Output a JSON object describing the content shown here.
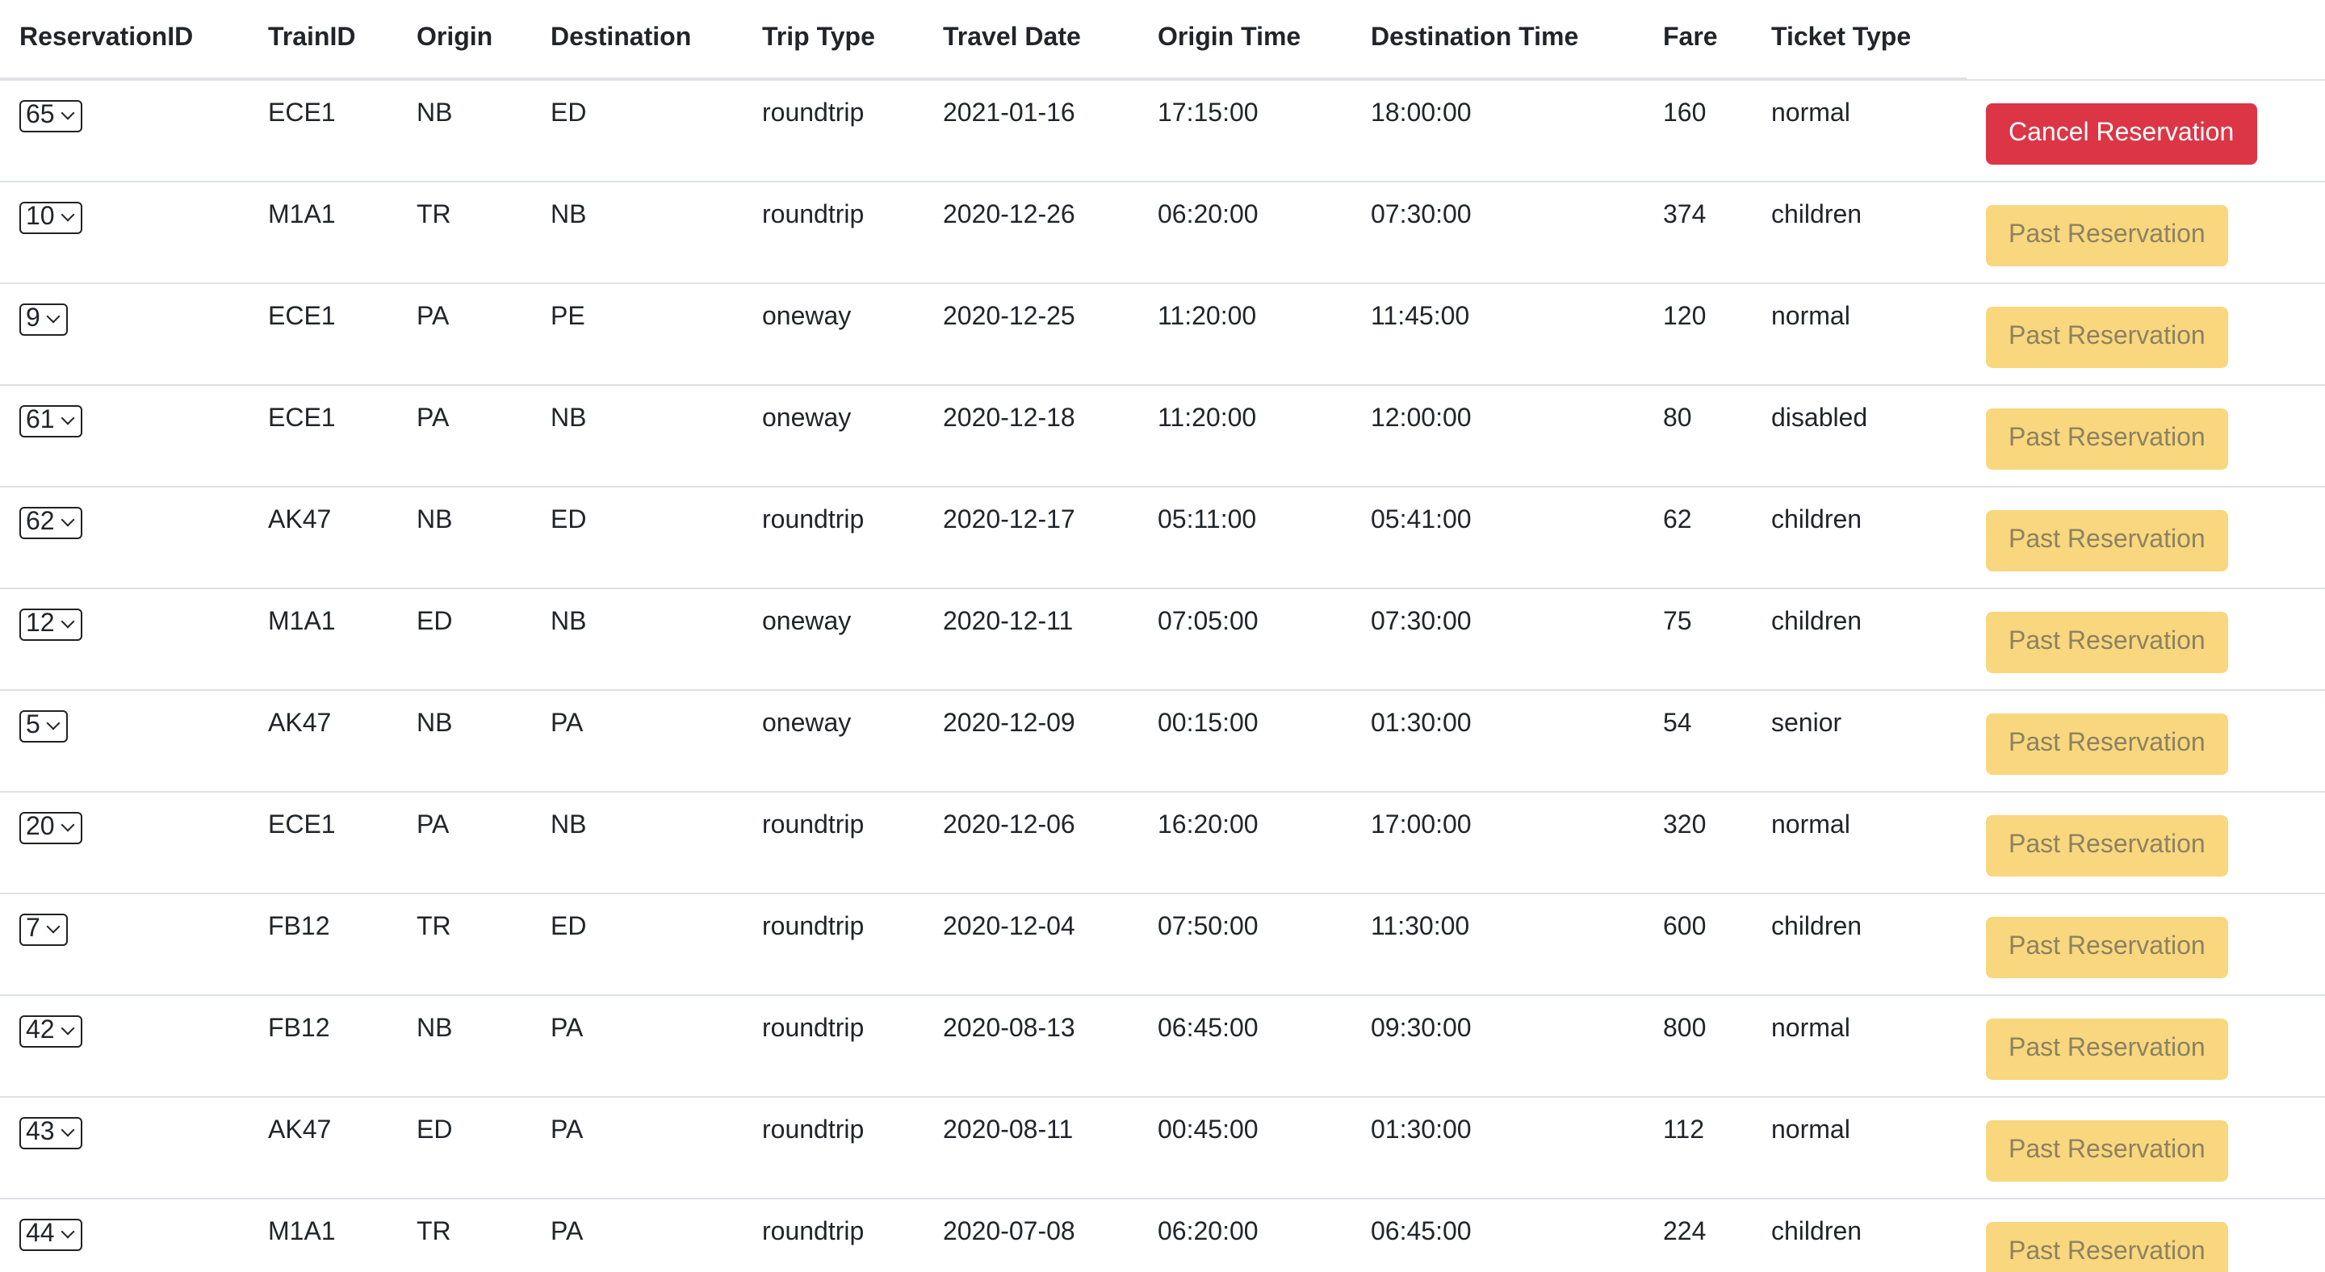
{
  "table": {
    "headers": [
      "ReservationID",
      "TrainID",
      "Origin",
      "Destination",
      "Trip Type",
      "Travel Date",
      "Origin Time",
      "Destination Time",
      "Fare",
      "Ticket Type"
    ],
    "rows": [
      {
        "id": "65",
        "train": "ECE1",
        "origin": "NB",
        "destination": "ED",
        "trip": "roundtrip",
        "date": "2021-01-16",
        "origin_time": "17:15:00",
        "dest_time": "18:00:00",
        "fare": "160",
        "ticket": "normal",
        "action": "Cancel Reservation",
        "action_type": "cancel"
      },
      {
        "id": "10",
        "train": "M1A1",
        "origin": "TR",
        "destination": "NB",
        "trip": "roundtrip",
        "date": "2020-12-26",
        "origin_time": "06:20:00",
        "dest_time": "07:30:00",
        "fare": "374",
        "ticket": "children",
        "action": "Past Reservation",
        "action_type": "past"
      },
      {
        "id": "9",
        "train": "ECE1",
        "origin": "PA",
        "destination": "PE",
        "trip": "oneway",
        "date": "2020-12-25",
        "origin_time": "11:20:00",
        "dest_time": "11:45:00",
        "fare": "120",
        "ticket": "normal",
        "action": "Past Reservation",
        "action_type": "past"
      },
      {
        "id": "61",
        "train": "ECE1",
        "origin": "PA",
        "destination": "NB",
        "trip": "oneway",
        "date": "2020-12-18",
        "origin_time": "11:20:00",
        "dest_time": "12:00:00",
        "fare": "80",
        "ticket": "disabled",
        "action": "Past Reservation",
        "action_type": "past"
      },
      {
        "id": "62",
        "train": "AK47",
        "origin": "NB",
        "destination": "ED",
        "trip": "roundtrip",
        "date": "2020-12-17",
        "origin_time": "05:11:00",
        "dest_time": "05:41:00",
        "fare": "62",
        "ticket": "children",
        "action": "Past Reservation",
        "action_type": "past"
      },
      {
        "id": "12",
        "train": "M1A1",
        "origin": "ED",
        "destination": "NB",
        "trip": "oneway",
        "date": "2020-12-11",
        "origin_time": "07:05:00",
        "dest_time": "07:30:00",
        "fare": "75",
        "ticket": "children",
        "action": "Past Reservation",
        "action_type": "past"
      },
      {
        "id": "5",
        "train": "AK47",
        "origin": "NB",
        "destination": "PA",
        "trip": "oneway",
        "date": "2020-12-09",
        "origin_time": "00:15:00",
        "dest_time": "01:30:00",
        "fare": "54",
        "ticket": "senior",
        "action": "Past Reservation",
        "action_type": "past"
      },
      {
        "id": "20",
        "train": "ECE1",
        "origin": "PA",
        "destination": "NB",
        "trip": "roundtrip",
        "date": "2020-12-06",
        "origin_time": "16:20:00",
        "dest_time": "17:00:00",
        "fare": "320",
        "ticket": "normal",
        "action": "Past Reservation",
        "action_type": "past"
      },
      {
        "id": "7",
        "train": "FB12",
        "origin": "TR",
        "destination": "ED",
        "trip": "roundtrip",
        "date": "2020-12-04",
        "origin_time": "07:50:00",
        "dest_time": "11:30:00",
        "fare": "600",
        "ticket": "children",
        "action": "Past Reservation",
        "action_type": "past"
      },
      {
        "id": "42",
        "train": "FB12",
        "origin": "NB",
        "destination": "PA",
        "trip": "roundtrip",
        "date": "2020-08-13",
        "origin_time": "06:45:00",
        "dest_time": "09:30:00",
        "fare": "800",
        "ticket": "normal",
        "action": "Past Reservation",
        "action_type": "past"
      },
      {
        "id": "43",
        "train": "AK47",
        "origin": "ED",
        "destination": "PA",
        "trip": "roundtrip",
        "date": "2020-08-11",
        "origin_time": "00:45:00",
        "dest_time": "01:30:00",
        "fare": "112",
        "ticket": "normal",
        "action": "Past Reservation",
        "action_type": "past"
      },
      {
        "id": "44",
        "train": "M1A1",
        "origin": "TR",
        "destination": "PA",
        "trip": "roundtrip",
        "date": "2020-07-08",
        "origin_time": "06:20:00",
        "dest_time": "06:45:00",
        "fare": "224",
        "ticket": "children",
        "action": "Past Reservation",
        "action_type": "past"
      }
    ]
  },
  "colors": {
    "cancel_button": "#dc3545",
    "past_button": "#f9d77e",
    "past_button_text": "#8c8260",
    "border": "#dee2e6"
  }
}
